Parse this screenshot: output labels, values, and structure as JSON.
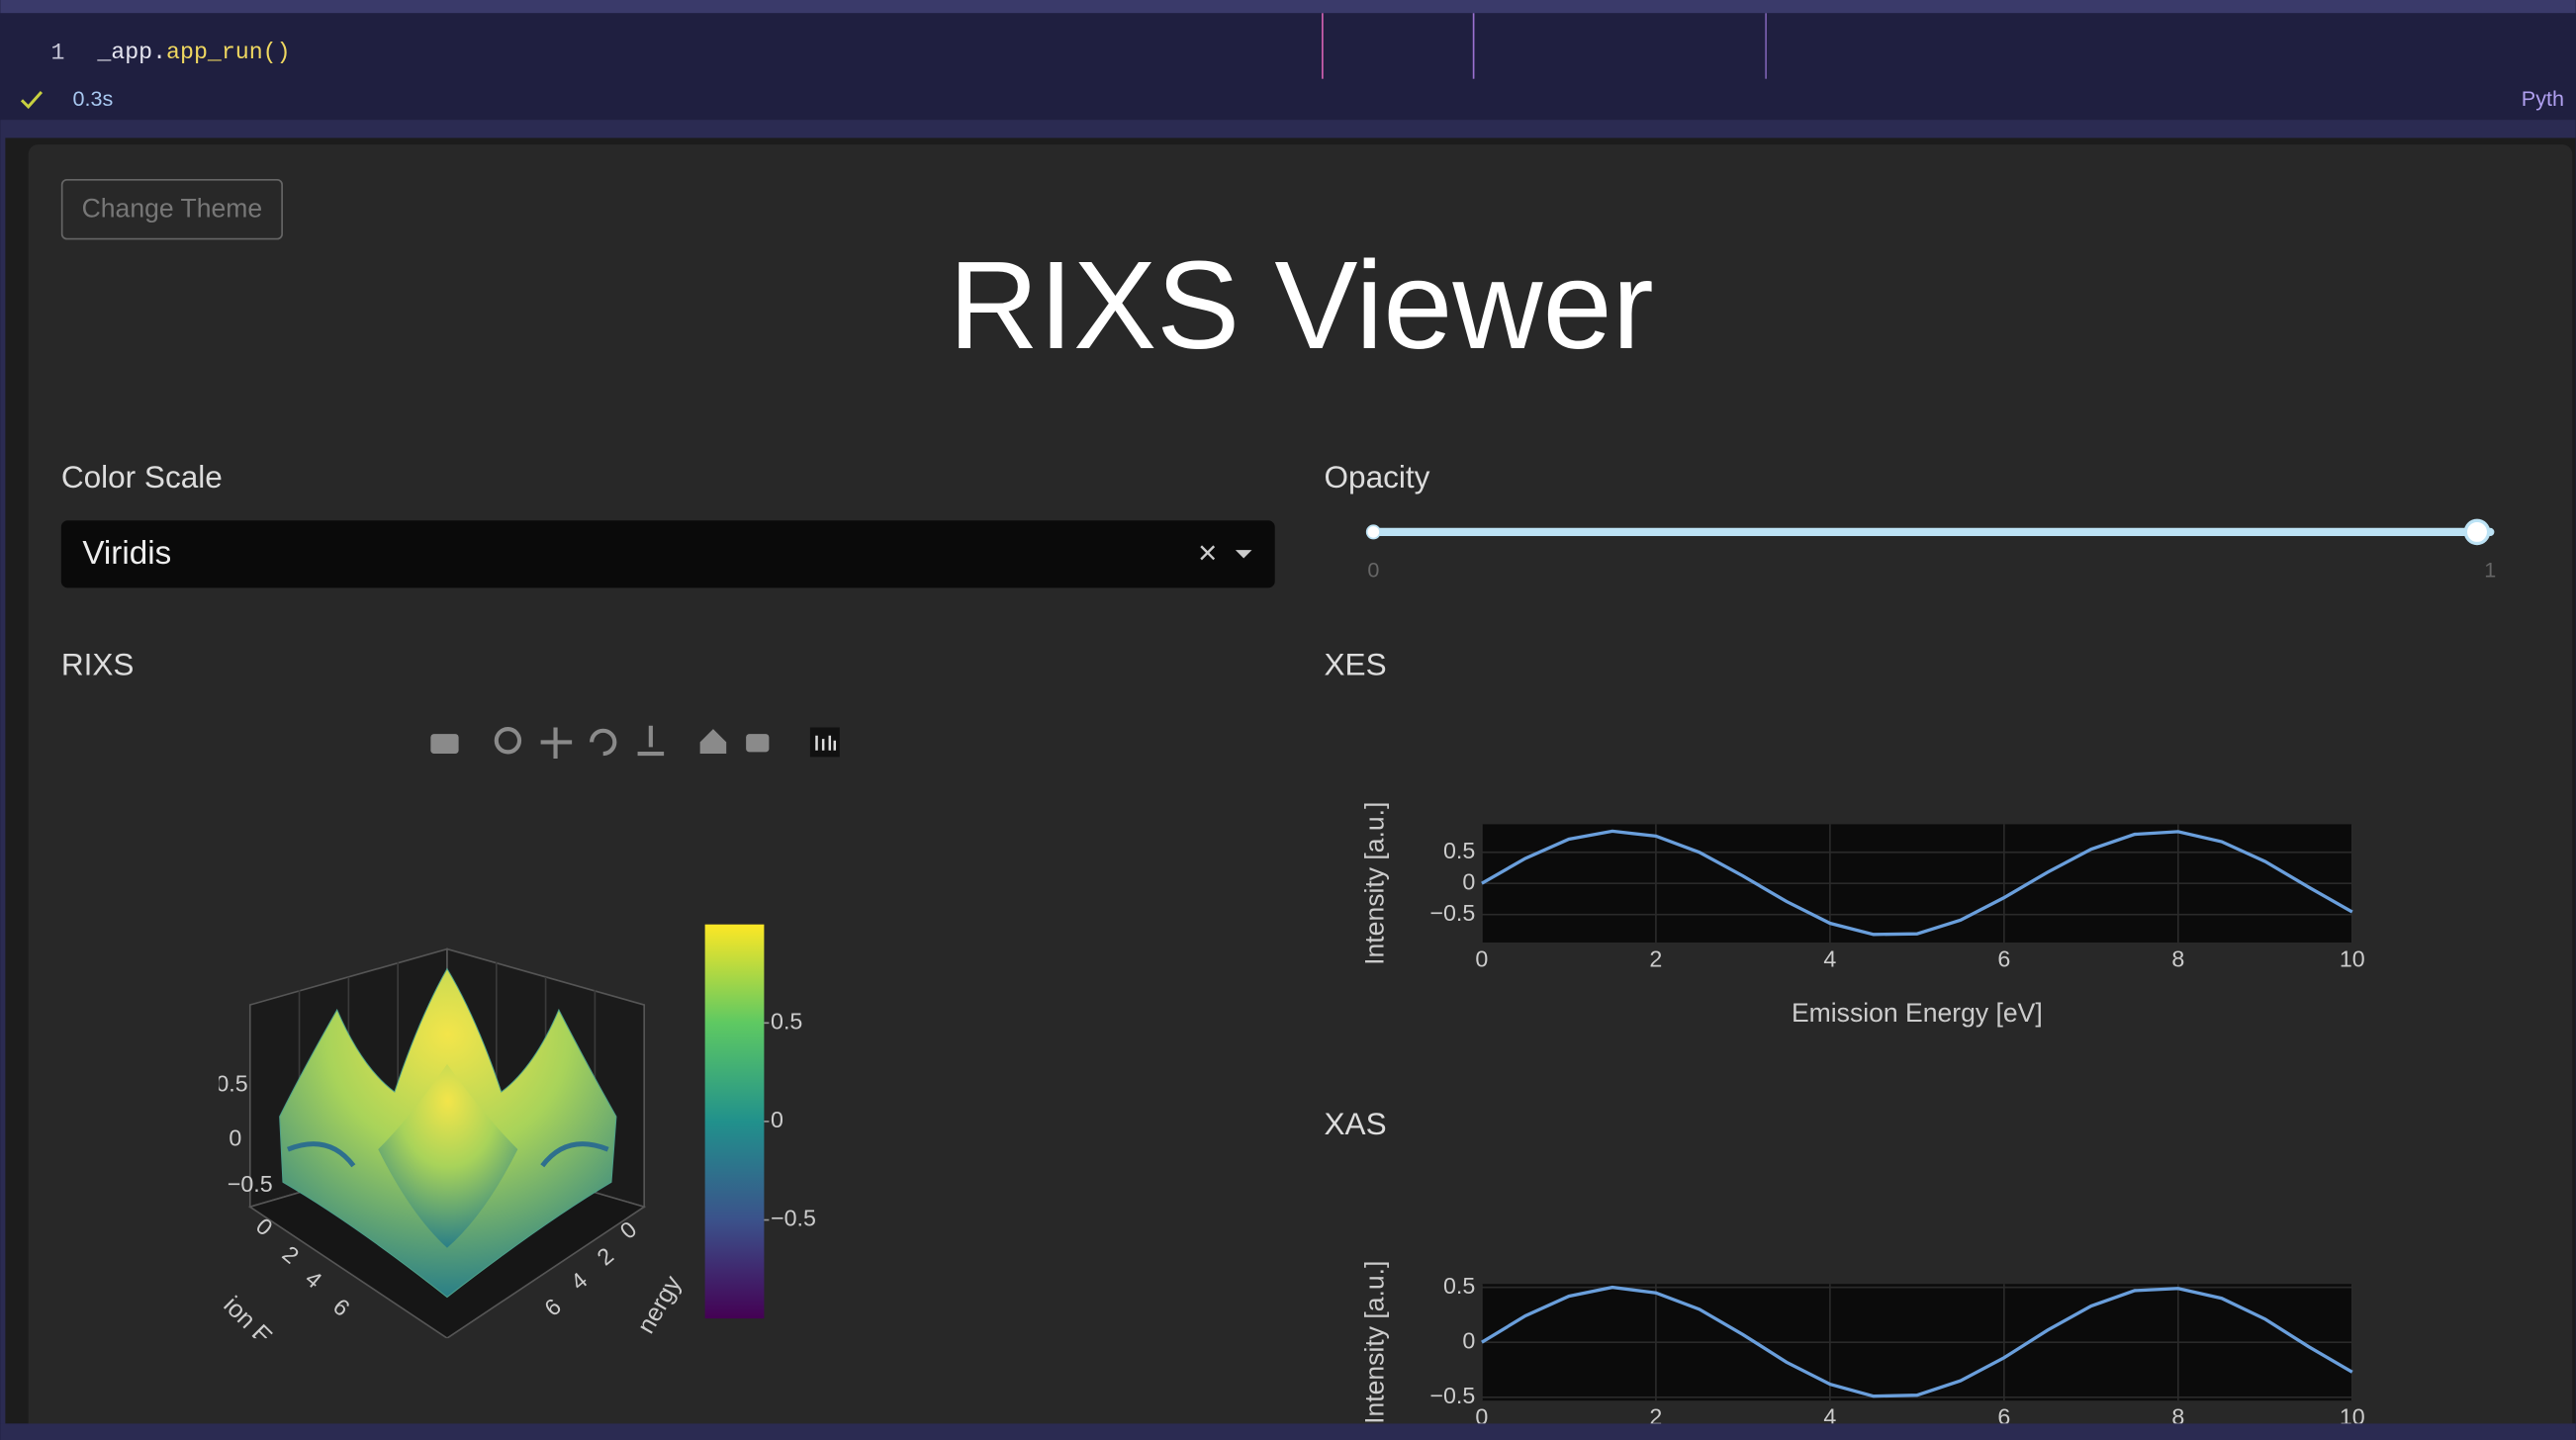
{
  "notebook": {
    "line_number": "1",
    "code_object": "_app.",
    "code_call": "app_run()",
    "status_time": "0.3s",
    "language": "Pyth"
  },
  "app": {
    "button": "Change Theme",
    "title": "RIXS Viewer",
    "color_scale_label": "Color Scale",
    "color_scale_value": "Viridis",
    "clear_icon": "×",
    "opacity_label": "Opacity",
    "opacity_slider": {
      "min": 0,
      "max": 1,
      "value": 1
    }
  },
  "chart_data": [
    {
      "type": "surface",
      "title": "RIXS",
      "colorscale": "Viridis",
      "colorbar": {
        "clim": [
          -1,
          1
        ],
        "ticks": [
          0.5,
          0,
          {
            "value": -0.5,
            "label": "−0.5"
          }
        ]
      },
      "zticks": [
        0.5,
        0,
        {
          "value": -0.5,
          "label": "−0.5"
        }
      ],
      "xticks": [
        0,
        2,
        4,
        6
      ],
      "yticks": [
        0,
        2,
        4,
        6
      ],
      "xaxis_title": "ion E",
      "yaxis_title": "nergy"
    },
    {
      "type": "line",
      "title": "XES",
      "xlabel": "Emission Energy [eV]",
      "ylabel": "Intensity [a.u.]",
      "color": "#6a9fdc",
      "grid": true,
      "x": [
        0,
        0.5,
        1,
        1.5,
        2,
        2.5,
        3,
        3.5,
        4,
        4.5,
        5,
        5.5,
        6,
        6.5,
        7,
        7.5,
        8,
        8.5,
        9,
        9.5,
        10
      ],
      "values": [
        0,
        0.4,
        0.71,
        0.84,
        0.76,
        0.5,
        0.12,
        -0.29,
        -0.64,
        -0.82,
        -0.81,
        -0.59,
        -0.23,
        0.18,
        0.55,
        0.79,
        0.83,
        0.67,
        0.35,
        -0.06,
        -0.46
      ],
      "xlim": [
        0,
        10
      ],
      "ylim": [
        -0.95,
        0.95
      ],
      "xticks": [
        0,
        2,
        4,
        6,
        8,
        10
      ],
      "yticks": [
        0.5,
        0,
        {
          "value": -0.5,
          "label": "−0.5"
        }
      ]
    },
    {
      "type": "line",
      "title": "XAS",
      "ylabel": "Intensity [a.u.]",
      "color": "#6a9fdc",
      "grid": true,
      "x": [
        0,
        0.5,
        1,
        1.5,
        2,
        2.5,
        3,
        3.5,
        4,
        4.5,
        5,
        5.5,
        6,
        6.5,
        7,
        7.5,
        8,
        8.5,
        9,
        9.5,
        10
      ],
      "values": [
        0,
        0.24,
        0.42,
        0.5,
        0.45,
        0.3,
        0.07,
        -0.18,
        -0.38,
        -0.49,
        -0.48,
        -0.35,
        -0.14,
        0.11,
        0.33,
        0.47,
        0.49,
        0.4,
        0.21,
        -0.04,
        -0.27
      ],
      "xlim": [
        0,
        10
      ],
      "ylim": [
        -0.53,
        0.53
      ],
      "xticks": [
        0,
        2,
        4,
        6,
        8,
        10
      ],
      "yticks": [
        0.5,
        0,
        {
          "value": -0.5,
          "label": "−0.5"
        }
      ]
    }
  ]
}
